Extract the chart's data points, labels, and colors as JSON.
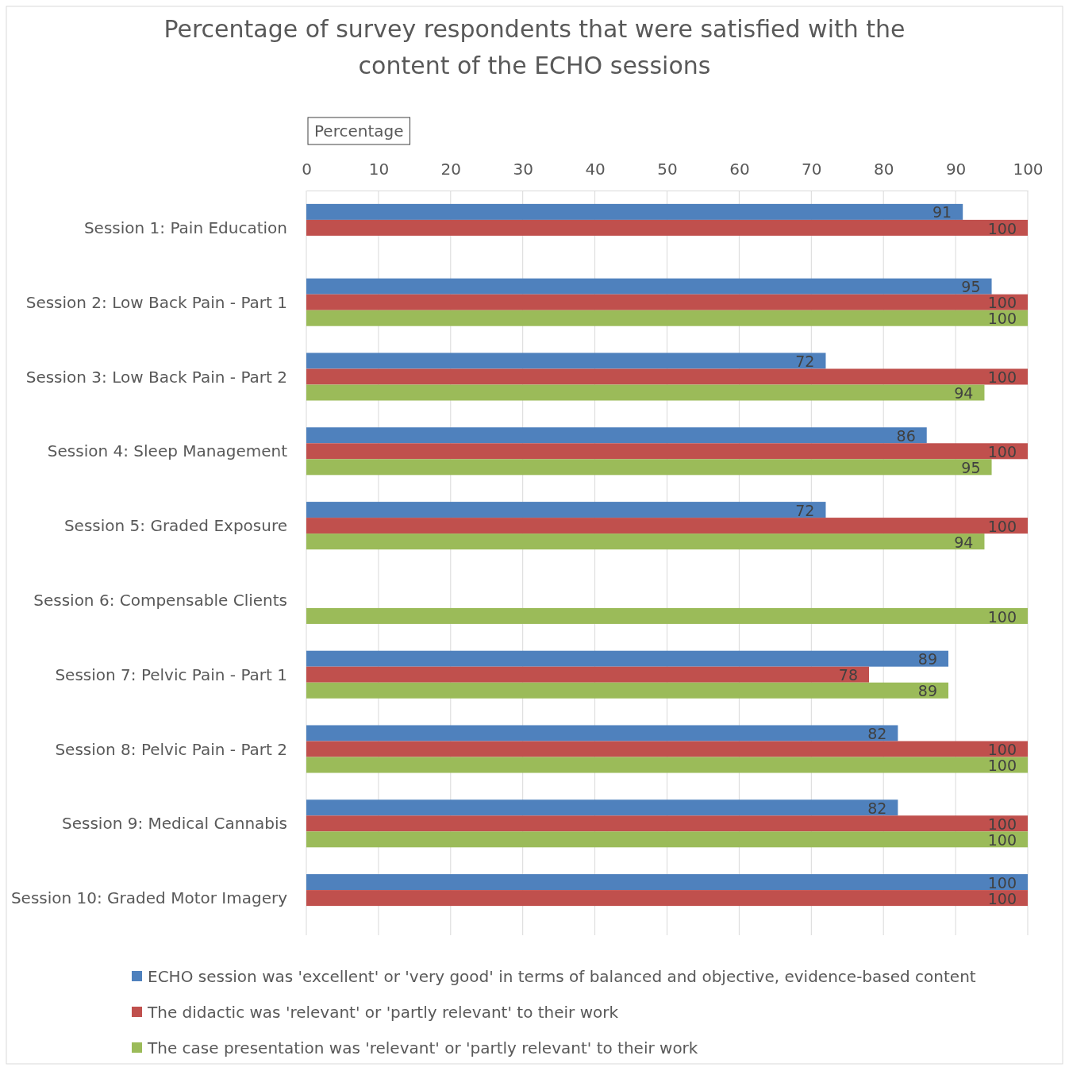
{
  "chart_data": {
    "type": "bar",
    "orientation": "horizontal",
    "title": "Percentage of survey respondents that were satisfied with the content of the ECHO sessions",
    "xlabel": "Percentage",
    "categories": [
      "Session 1: Pain Education",
      "Session 2: Low Back Pain - Part 1",
      "Session 3: Low Back Pain - Part 2",
      "Session 4: Sleep Management",
      "Session 5: Graded Exposure",
      "Session 6: Compensable Clients",
      "Session 7: Pelvic Pain - Part 1",
      "Session 8: Pelvic Pain - Part 2",
      "Session 9: Medical Cannabis",
      "Session 10: Graded Motor Imagery"
    ],
    "series": [
      {
        "name": "ECHO session was 'excellent' or 'very good' in terms of balanced and objective, evidence-based content",
        "color": "#4f81bd",
        "values": [
          91,
          95,
          72,
          86,
          72,
          null,
          89,
          82,
          82,
          100
        ]
      },
      {
        "name": "The didactic was 'relevant' or 'partly relevant' to their work",
        "color": "#c0504d",
        "values": [
          100,
          100,
          100,
          100,
          100,
          null,
          78,
          100,
          100,
          100
        ]
      },
      {
        "name": "The case presentation was 'relevant' or 'partly relevant' to their work",
        "color": "#9bbb59",
        "values": [
          null,
          100,
          94,
          95,
          94,
          100,
          89,
          100,
          100,
          null
        ]
      }
    ],
    "xlim": [
      0,
      100
    ],
    "xticks": [
      0,
      10,
      20,
      30,
      40,
      50,
      60,
      70,
      80,
      90,
      100
    ],
    "grid": "x",
    "legend": "bottom",
    "data_labels": true
  }
}
